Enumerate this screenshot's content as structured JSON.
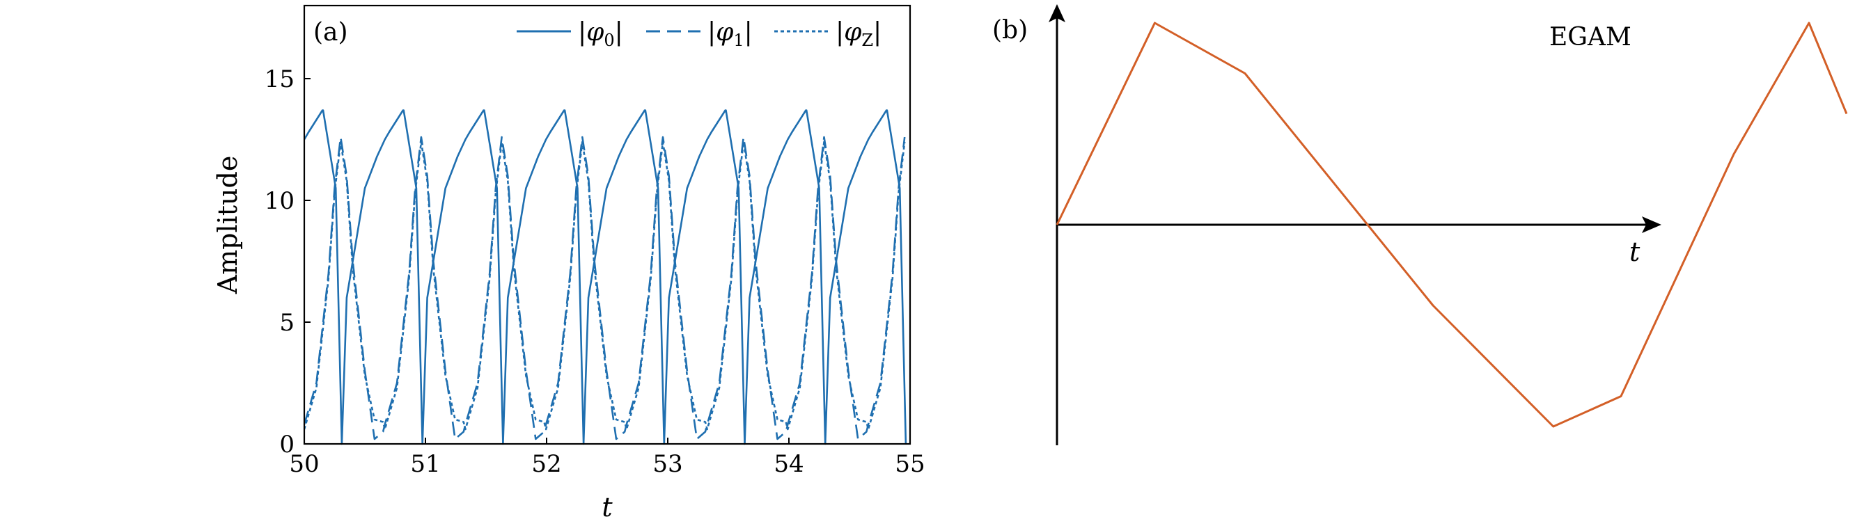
{
  "chart_data": [
    {
      "panel": "(a)",
      "type": "line",
      "xlabel": "t",
      "ylabel": "Amplitude",
      "xlim": [
        50,
        55
      ],
      "ylim": [
        0,
        18
      ],
      "xticks": [
        "50",
        "51",
        "52",
        "53",
        "54",
        "55"
      ],
      "yticks": [
        "0",
        "5",
        "10",
        "15"
      ],
      "legend_position": "top-right",
      "color": "#1f6fb0",
      "oscillation_period": 0.665,
      "series": [
        {
          "name": "|φ0|",
          "line_style": "solid",
          "x": [
            50.0,
            50.15,
            50.26,
            50.31,
            50.35,
            50.5,
            50.6,
            50.7,
            50.82
          ],
          "y": [
            12.5,
            13.7,
            10.5,
            0.0,
            6.0,
            10.5,
            11.8,
            12.8,
            13.7
          ]
        },
        {
          "name": "|φ1|",
          "line_style": "dashed",
          "x": [
            50.0,
            50.1,
            50.2,
            50.25,
            50.3,
            50.35,
            50.4,
            50.5,
            50.58,
            50.65
          ],
          "y": [
            0.8,
            2.5,
            7.0,
            10.5,
            12.6,
            11.0,
            7.5,
            3.0,
            0.2,
            0.5
          ]
        },
        {
          "name": "|φZ|",
          "line_style": "dotted",
          "x": [
            50.0,
            50.1,
            50.2,
            50.25,
            50.3,
            50.35,
            50.4,
            50.5,
            50.58,
            50.65
          ],
          "y": [
            0.6,
            2.3,
            6.8,
            10.3,
            12.4,
            10.8,
            7.2,
            2.8,
            1.0,
            0.9
          ]
        }
      ]
    },
    {
      "panel": "(b)",
      "type": "line",
      "xlabel": "t",
      "ylabel": "",
      "color": "#d35f27",
      "series": [
        {
          "name": "EGAM",
          "line_style": "solid",
          "x": [
            0.0,
            0.13,
            0.25,
            0.5,
            0.66,
            0.75,
            0.9,
            1.0,
            1.05
          ],
          "y": [
            0.0,
            1.0,
            0.75,
            -0.4,
            -1.0,
            -0.85,
            0.35,
            1.0,
            0.55
          ]
        }
      ]
    }
  ],
  "legend": {
    "phi0": {
      "symbol": "φ",
      "sub": "0"
    },
    "phi1": {
      "symbol": "φ",
      "sub": "1"
    },
    "phiZ": {
      "symbol": "φ",
      "sub": "Z"
    }
  }
}
